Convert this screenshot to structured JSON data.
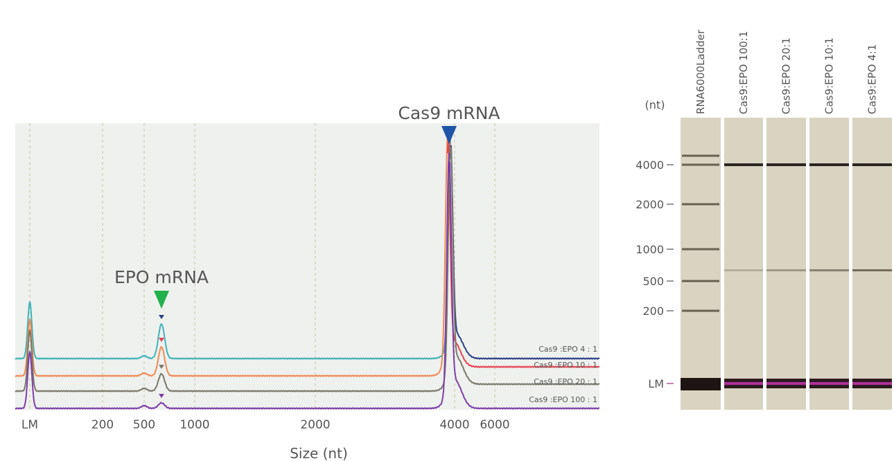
{
  "electropherogram": {
    "annotations": {
      "cas9": "Cas9 mRNA",
      "epo": "EPO mRNA"
    },
    "x_axis": {
      "label": "Size (nt)",
      "ticks": [
        "LM",
        "200",
        "500",
        "1000",
        "2000",
        "4000",
        "6000"
      ]
    },
    "trace_labels": [
      "Cas9 :EPO    4 : 1",
      "Cas9 :EPO   10 : 1",
      "Cas9 :EPO   20 : 1",
      "Cas9 :EPO 100 : 1"
    ]
  },
  "gel": {
    "unit": "(nt)",
    "lanes": [
      "RNA6000Ladder",
      "Cas9:EPO 100:1",
      "Cas9:EPO 20:1",
      "Cas9:EPO 10:1",
      "Cas9:EPO 4:1"
    ],
    "size_labels": [
      "4000",
      "2000",
      "1000",
      "500",
      "200",
      "LM"
    ]
  }
}
